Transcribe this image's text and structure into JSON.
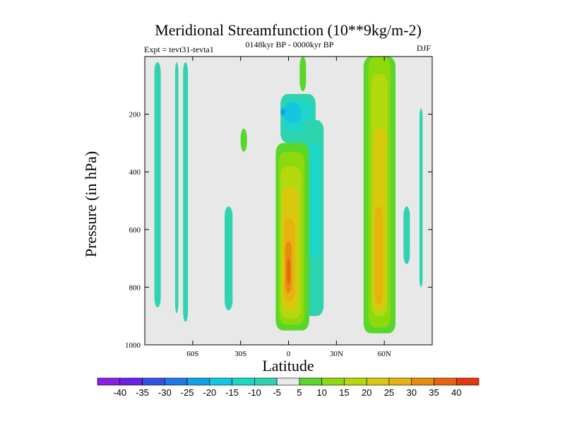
{
  "chart_data": {
    "type": "contour",
    "title": "Meridional Streamfunction (10**9kg/m-2)",
    "left_label": "Expt = tevt31-tevta1",
    "center_label": "0148kyr BP - 0000kyr BP",
    "right_label": "DJF",
    "xlabel": "Latitude",
    "ylabel": "Pressure (in hPa)",
    "xlim": [
      -90,
      90
    ],
    "ylim": [
      0,
      1000
    ],
    "y_reversed": true,
    "x_ticks": [
      {
        "value": -60,
        "label": "60S"
      },
      {
        "value": -30,
        "label": "30S"
      },
      {
        "value": 0,
        "label": "0"
      },
      {
        "value": 30,
        "label": "30N"
      },
      {
        "value": 60,
        "label": "60N"
      }
    ],
    "y_ticks": [
      {
        "value": 200,
        "label": "200"
      },
      {
        "value": 400,
        "label": "400"
      },
      {
        "value": 600,
        "label": "600"
      },
      {
        "value": 800,
        "label": "800"
      },
      {
        "value": 1000,
        "label": "1000"
      }
    ],
    "background_color": "#e8e8e8",
    "colorbar": {
      "bins": [
        {
          "color": "#8a1fe6"
        },
        {
          "color": "#6a20e6"
        },
        {
          "color": "#3050e6"
        },
        {
          "color": "#1f78e6"
        },
        {
          "color": "#11a2e6"
        },
        {
          "color": "#15c6e0"
        },
        {
          "color": "#1ed6c8"
        },
        {
          "color": "#2ed3b0"
        },
        {
          "color": "#e8e8e8"
        },
        {
          "color": "#58d62a"
        },
        {
          "color": "#8ed80e"
        },
        {
          "color": "#b4d80e"
        },
        {
          "color": "#d8c80e"
        },
        {
          "color": "#e6b20e"
        },
        {
          "color": "#e68c0e"
        },
        {
          "color": "#e6640e"
        },
        {
          "color": "#e6380e"
        }
      ],
      "labels": [
        "-40",
        "-35",
        "-30",
        "-25",
        "-20",
        "-15",
        "-10",
        "-5",
        "5",
        "10",
        "15",
        "20",
        "25",
        "30",
        "35",
        "40"
      ]
    },
    "regions": [
      {
        "color": "#2ed3b0",
        "lat": [
          -84,
          -80
        ],
        "p": [
          20,
          870
        ]
      },
      {
        "color": "#2ed3b0",
        "lat": [
          -71,
          -69
        ],
        "p": [
          20,
          890
        ]
      },
      {
        "color": "#2ed3b0",
        "lat": [
          -66,
          -63
        ],
        "p": [
          20,
          920
        ]
      },
      {
        "color": "#2ed3b0",
        "lat": [
          -40,
          -35
        ],
        "p": [
          520,
          880
        ]
      },
      {
        "color": "#58d62a",
        "lat": [
          -30,
          -26
        ],
        "p": [
          250,
          330
        ]
      },
      {
        "color": "#2ed3b0",
        "lat": [
          -5,
          17
        ],
        "p": [
          130,
          300
        ]
      },
      {
        "color": "#1ed6c8",
        "lat": [
          -3,
          15
        ],
        "p": [
          150,
          260
        ]
      },
      {
        "color": "#15c6e0",
        "lat": [
          -3,
          8
        ],
        "p": [
          160,
          230
        ]
      },
      {
        "color": "#11a2e6",
        "lat": [
          -5,
          -2
        ],
        "p": [
          180,
          205
        ]
      },
      {
        "color": "#2ed3b0",
        "lat": [
          8,
          22
        ],
        "p": [
          220,
          900
        ]
      },
      {
        "color": "#1ed6c8",
        "lat": [
          10,
          20
        ],
        "p": [
          300,
          700
        ]
      },
      {
        "color": "#58d62a",
        "lat": [
          -8,
          13
        ],
        "p": [
          300,
          950
        ]
      },
      {
        "color": "#8ed80e",
        "lat": [
          -6,
          10
        ],
        "p": [
          330,
          930
        ]
      },
      {
        "color": "#b4d80e",
        "lat": [
          -5,
          8
        ],
        "p": [
          380,
          910
        ]
      },
      {
        "color": "#d8c80e",
        "lat": [
          -4,
          6
        ],
        "p": [
          450,
          880
        ]
      },
      {
        "color": "#e6b20e",
        "lat": [
          -3,
          4
        ],
        "p": [
          560,
          850
        ]
      },
      {
        "color": "#e68c0e",
        "lat": [
          -2,
          2
        ],
        "p": [
          640,
          820
        ]
      },
      {
        "color": "#e6640e",
        "lat": [
          -1,
          1
        ],
        "p": [
          700,
          790
        ]
      },
      {
        "color": "#58d62a",
        "lat": [
          7,
          11
        ],
        "p": [
          0,
          120
        ]
      },
      {
        "color": "#58d62a",
        "lat": [
          47,
          67
        ],
        "p": [
          0,
          960
        ]
      },
      {
        "color": "#8ed80e",
        "lat": [
          50,
          64
        ],
        "p": [
          0,
          940
        ]
      },
      {
        "color": "#b4d80e",
        "lat": [
          52,
          62
        ],
        "p": [
          60,
          900
        ]
      },
      {
        "color": "#d8c80e",
        "lat": [
          53,
          61
        ],
        "p": [
          250,
          880
        ]
      },
      {
        "color": "#e6b20e",
        "lat": [
          54,
          59
        ],
        "p": [
          520,
          860
        ]
      },
      {
        "color": "#2ed3b0",
        "lat": [
          72,
          76
        ],
        "p": [
          520,
          720
        ]
      },
      {
        "color": "#2ed3b0",
        "lat": [
          82,
          84
        ],
        "p": [
          180,
          800
        ]
      }
    ]
  }
}
